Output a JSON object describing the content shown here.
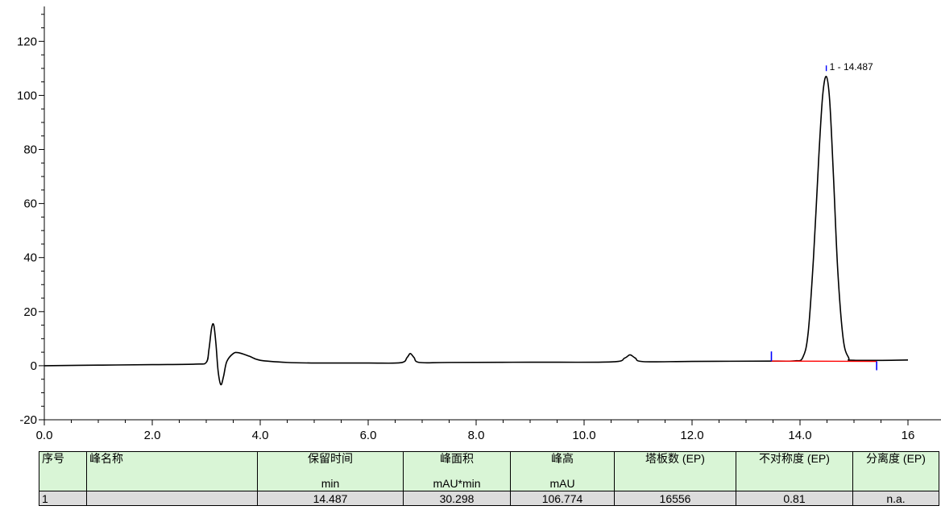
{
  "chart_data": {
    "type": "line",
    "title": "",
    "xlabel": "",
    "ylabel": "",
    "xlim": [
      0.0,
      16.0
    ],
    "ylim": [
      -20,
      135
    ],
    "x_ticks": [
      "0.0",
      "2.0",
      "4.0",
      "6.0",
      "8.0",
      "10.0",
      "12.0",
      "14.0",
      "16"
    ],
    "y_ticks": [
      "-20",
      "0",
      "20",
      "40",
      "60",
      "80",
      "100",
      "120"
    ],
    "series": [
      {
        "color": "#000000",
        "points": [
          [
            0.0,
            0.0
          ],
          [
            1.0,
            0.2
          ],
          [
            2.0,
            0.4
          ],
          [
            2.8,
            0.6
          ],
          [
            3.0,
            1.2
          ],
          [
            3.05,
            6.0
          ],
          [
            3.1,
            14.0
          ],
          [
            3.14,
            15.0
          ],
          [
            3.18,
            8.0
          ],
          [
            3.22,
            -2.0
          ],
          [
            3.27,
            -7.0
          ],
          [
            3.32,
            -4.0
          ],
          [
            3.38,
            1.5
          ],
          [
            3.5,
            4.5
          ],
          [
            3.6,
            4.8
          ],
          [
            3.8,
            3.5
          ],
          [
            4.0,
            2.0
          ],
          [
            4.5,
            1.2
          ],
          [
            5.0,
            1.0
          ],
          [
            6.0,
            1.0
          ],
          [
            6.6,
            1.1
          ],
          [
            6.72,
            3.0
          ],
          [
            6.78,
            4.5
          ],
          [
            6.85,
            3.0
          ],
          [
            6.95,
            1.2
          ],
          [
            7.5,
            1.2
          ],
          [
            9.0,
            1.3
          ],
          [
            10.5,
            1.4
          ],
          [
            10.75,
            2.8
          ],
          [
            10.85,
            4.0
          ],
          [
            10.95,
            2.8
          ],
          [
            11.1,
            1.5
          ],
          [
            12.0,
            1.6
          ],
          [
            13.5,
            1.7
          ],
          [
            13.9,
            1.8
          ],
          [
            14.05,
            3.0
          ],
          [
            14.15,
            12.0
          ],
          [
            14.25,
            40.0
          ],
          [
            14.35,
            78.0
          ],
          [
            14.42,
            100.0
          ],
          [
            14.487,
            107.0
          ],
          [
            14.55,
            98.0
          ],
          [
            14.62,
            70.0
          ],
          [
            14.7,
            35.0
          ],
          [
            14.8,
            10.0
          ],
          [
            14.9,
            3.0
          ],
          [
            15.0,
            2.0
          ],
          [
            16.0,
            2.1
          ]
        ]
      }
    ],
    "baseline": {
      "color": "#ff0000",
      "x": [
        13.47,
        15.42
      ],
      "y": [
        1.7,
        1.6
      ]
    },
    "integration_markers": [
      {
        "x": 13.47,
        "color": "#0000ff"
      },
      {
        "x": 15.42,
        "color": "#0000ff"
      }
    ],
    "peak_annotations": [
      {
        "x": 14.487,
        "y": 109.0,
        "text": "1 - 14.487",
        "color": "#0000ff"
      }
    ]
  },
  "table": {
    "headers": [
      {
        "line1": "序号",
        "line2": ""
      },
      {
        "line1": "峰名称",
        "line2": ""
      },
      {
        "line1": "保留时间",
        "line2": "min"
      },
      {
        "line1": "峰面积",
        "line2": "mAU*min"
      },
      {
        "line1": "峰高",
        "line2": "mAU"
      },
      {
        "line1": "塔板数 (EP)",
        "line2": ""
      },
      {
        "line1": "不对称度 (EP)",
        "line2": ""
      },
      {
        "line1": "分离度 (EP)",
        "line2": ""
      }
    ],
    "rows": [
      [
        "1",
        "",
        "14.487",
        "30.298",
        "106.774",
        "16556",
        "0.81",
        "n.a."
      ]
    ]
  }
}
